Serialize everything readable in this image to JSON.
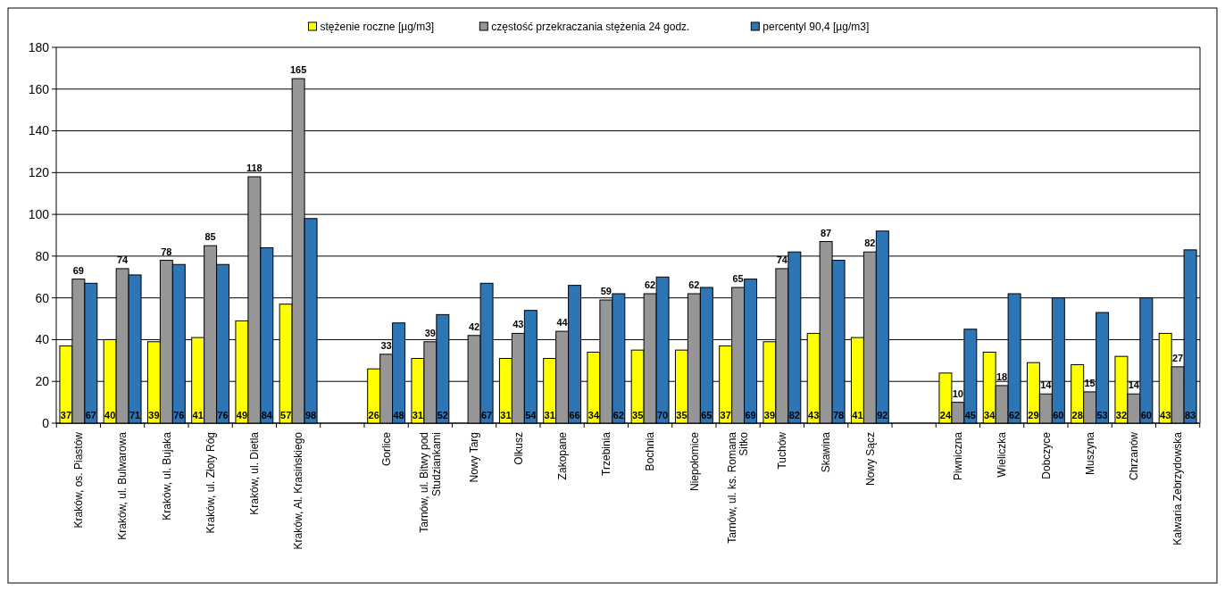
{
  "chart_data": {
    "type": "bar",
    "categories": [
      "Kraków, os. Piastów",
      "Kraków, ul. Bulwarowa",
      "Kraków, ul. Bujaka",
      "Kraków, ul. Złoty Róg",
      "Kraków, ul. Dietla",
      "Kraków, Al. Krasińskiego",
      null,
      "Gorlice",
      "Tarnów, ul. Bitwy pod Studziankami",
      "Nowy Targ",
      "Olkusz",
      "Zakopane",
      "Trzebinia",
      "Bochnia",
      "Niepołomice",
      "Tarnów, ul. ks. Romana Sitko",
      "Tuchów",
      "Skawina",
      "Nowy Sącz",
      null,
      "Piwniczna",
      "Wieliczka",
      "Dobczyce",
      "Muszyna",
      "Chrzanów",
      "Kalwaria Zebrzydowska"
    ],
    "series": [
      {
        "name": "stężenie roczne [µg/m3]",
        "color": "#ffff00",
        "values": [
          37,
          40,
          39,
          41,
          49,
          57,
          null,
          26,
          31,
          null,
          31,
          31,
          34,
          35,
          35,
          37,
          39,
          43,
          41,
          null,
          24,
          34,
          29,
          28,
          32,
          43
        ]
      },
      {
        "name": "częstość przekraczania stężenia 24 godz.",
        "color": "#969696",
        "values": [
          69,
          74,
          78,
          85,
          118,
          165,
          null,
          33,
          39,
          42,
          43,
          44,
          59,
          62,
          62,
          65,
          74,
          87,
          82,
          null,
          10,
          18,
          14,
          15,
          14,
          27
        ]
      },
      {
        "name": "percentyl 90,4 [µg/m3]",
        "color": "#2e75b6",
        "values": [
          67,
          71,
          76,
          76,
          84,
          98,
          null,
          48,
          52,
          67,
          54,
          66,
          62,
          70,
          65,
          69,
          82,
          78,
          92,
          null,
          45,
          62,
          60,
          53,
          60,
          83
        ]
      }
    ],
    "ylim": [
      0,
      180
    ],
    "yticks": [
      0,
      20,
      40,
      60,
      80,
      100,
      120,
      140,
      160,
      180
    ],
    "grid": "y",
    "legend": "top",
    "data_labels": true
  }
}
